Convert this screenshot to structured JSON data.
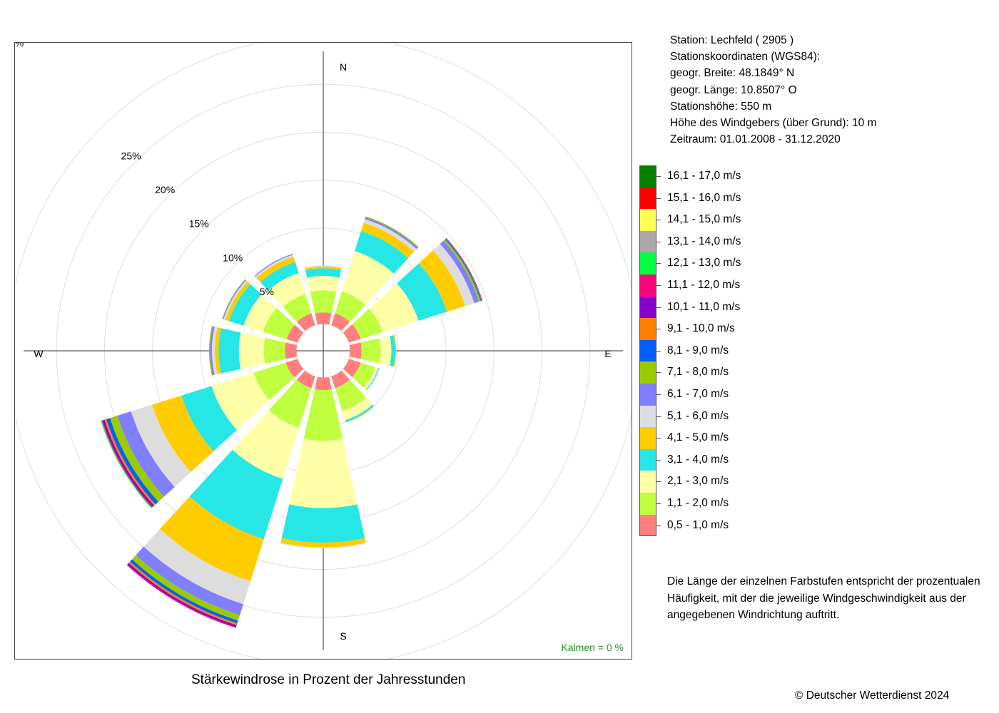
{
  "station": {
    "line1": "Station:  Lechfeld  ( 2905 )",
    "line2": "Stationskoordinaten (WGS84):",
    "line3": "geogr. Breite: 48.1849° N",
    "line4": "geogr. Länge: 10.8507° O",
    "line5": "Stationshöhe: 550 m",
    "line6": "Höhe des Windgebers (über Grund): 10 m",
    "line7": "Zeitraum: 01.01.2008 - 31.12.2020"
  },
  "note": {
    "line1": "Die Länge der einzelnen Farbstufen entspricht der prozentualen",
    "line2": "Häufigkeit, mit der die jeweilige Windgeschwindigkeit aus der",
    "line3": "angegebenen Windrichtung auftritt."
  },
  "calm_label": "Kalmen  =  0 %",
  "copyright": "© Deutscher Wetterdienst  2024",
  "chart_data": {
    "type": "windrose",
    "title": "Stärkewindrose in Prozent der Jahresstunden",
    "unit": "%",
    "compass_labels": [
      "N",
      "E",
      "S",
      "W"
    ],
    "radial_ticks": [
      5,
      10,
      15,
      20,
      25
    ],
    "radial_tick_labels": [
      "5%",
      "10%",
      "15%",
      "20%",
      "25%"
    ],
    "radial_corner_label": "%",
    "inner_hole_percent": 2.8,
    "sector_width_deg": 25,
    "directions": [
      0,
      30,
      60,
      90,
      120,
      150,
      180,
      210,
      240,
      270,
      300,
      330
    ],
    "speed_classes": [
      {
        "label": "0,5 - 1,0 m/s",
        "color": "#FF7F7F"
      },
      {
        "label": "1,1 - 2,0 m/s",
        "color": "#BFFF3F"
      },
      {
        "label": "2,1 - 3,0 m/s",
        "color": "#FFFFA8"
      },
      {
        "label": "3,1 - 4,0 m/s",
        "color": "#26E6E6"
      },
      {
        "label": "4,1 - 5,0 m/s",
        "color": "#FFCC00"
      },
      {
        "label": "5,1 - 6,0 m/s",
        "color": "#DDDDDD"
      },
      {
        "label": "6,1 - 7,0 m/s",
        "color": "#7F7FFF"
      },
      {
        "label": "7,1 - 8,0 m/s",
        "color": "#99CC00"
      },
      {
        "label": "8,1 - 9,0 m/s",
        "color": "#005FFF"
      },
      {
        "label": "9,1 - 10,0 m/s",
        "color": "#FF8000"
      },
      {
        "label": "10,1 - 11,0 m/s",
        "color": "#8800CC"
      },
      {
        "label": "11,1 - 12,0 m/s",
        "color": "#FF007F"
      },
      {
        "label": "12,1 - 13,0 m/s",
        "color": "#00FF3F"
      },
      {
        "label": "13,1 - 14,0 m/s",
        "color": "#AAAAAA"
      },
      {
        "label": "14,1 - 15,0 m/s",
        "color": "#FFFF55"
      },
      {
        "label": "15,1 - 16,0 m/s",
        "color": "#FF0000"
      },
      {
        "label": "16,1 - 17,0 m/s",
        "color": "#008000"
      }
    ],
    "series": [
      {
        "dir": 0,
        "values": [
          1.2,
          2.3,
          1.5,
          0.8,
          0.2,
          0.1
        ]
      },
      {
        "dir": 30,
        "values": [
          1.3,
          2.4,
          4.4,
          2.2,
          0.9,
          0.4,
          0.2,
          0.1
        ]
      },
      {
        "dir": 60,
        "values": [
          1.3,
          2.4,
          3.9,
          3.1,
          2.0,
          1.0,
          0.5,
          0.2,
          0.1,
          0.05,
          0.05
        ]
      },
      {
        "dir": 90,
        "values": [
          1.2,
          2.0,
          1.1,
          0.4,
          0.1
        ]
      },
      {
        "dir": 120,
        "values": [
          1.3,
          1.6,
          0.3,
          0.1
        ]
      },
      {
        "dir": 150,
        "values": [
          1.3,
          2.5,
          1.0,
          0.2,
          0.05
        ]
      },
      {
        "dir": 180,
        "values": [
          1.3,
          5.3,
          7.0,
          3.6,
          0.5,
          0.1
        ]
      },
      {
        "dir": 210,
        "values": [
          1.3,
          4.3,
          5.6,
          6.6,
          4.6,
          2.5,
          1.2,
          0.6,
          0.3,
          0.2,
          0.2,
          0.1
        ]
      },
      {
        "dir": 240,
        "values": [
          1.3,
          3.5,
          4.6,
          3.3,
          3.2,
          2.3,
          1.5,
          0.8,
          0.4,
          0.2,
          0.2,
          0.1,
          0.1
        ]
      },
      {
        "dir": 270,
        "values": [
          1.2,
          2.2,
          2.6,
          2.1,
          0.4,
          0.3,
          0.2,
          0.1
        ]
      },
      {
        "dir": 300,
        "values": [
          1.2,
          2.6,
          2.1,
          1.6,
          0.4,
          0.2,
          0.1,
          0.05
        ]
      },
      {
        "dir": 330,
        "values": [
          1.3,
          2.1,
          2.3,
          1.2,
          0.6,
          0.2,
          0.1
        ]
      }
    ]
  }
}
